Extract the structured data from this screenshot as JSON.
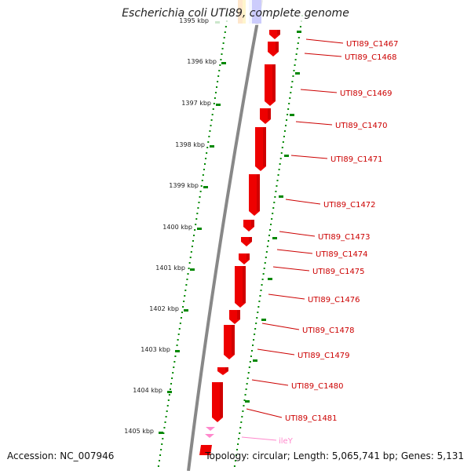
{
  "map": {
    "title": "Escherichia coli UTI89, complete genome",
    "accession": "Accession: NC_007946",
    "summary": "Topology: circular; Length: 5,065,741 bp; Genes: 5,131"
  },
  "scale": {
    "ticks": [
      {
        "label": "1395 kbp"
      },
      {
        "label": "1396 kbp"
      },
      {
        "label": "1397 kbp"
      },
      {
        "label": "1398 kbp"
      },
      {
        "label": "1399 kbp"
      },
      {
        "label": "1400 kbp"
      },
      {
        "label": "1401 kbp"
      },
      {
        "label": "1402 kbp"
      },
      {
        "label": "1403 kbp"
      },
      {
        "label": "1404 kbp"
      },
      {
        "label": "1405 kbp"
      }
    ]
  },
  "genes": [
    {
      "label": "UTI89_C1467"
    },
    {
      "label": "UTI89_C1468"
    },
    {
      "label": "UTI89_C1469"
    },
    {
      "label": "UTI89_C1470"
    },
    {
      "label": "UTI89_C1471"
    },
    {
      "label": "UTI89_C1472"
    },
    {
      "label": "UTI89_C1473"
    },
    {
      "label": "UTI89_C1474"
    },
    {
      "label": "UTI89_C1475"
    },
    {
      "label": "UTI89_C1476"
    },
    {
      "label": "UTI89_C1478"
    },
    {
      "label": "UTI89_C1479"
    },
    {
      "label": "UTI89_C1480"
    },
    {
      "label": "UTI89_C1481"
    },
    {
      "label": "ileY"
    }
  ],
  "colors": {
    "cds": "#ee0000",
    "trna": "#ff88cc",
    "other_feature": "#ff22aa",
    "backbone": "#888888",
    "tick": "#008800",
    "gene_label": "#cc0000",
    "trna_label": "#ff88cc"
  }
}
